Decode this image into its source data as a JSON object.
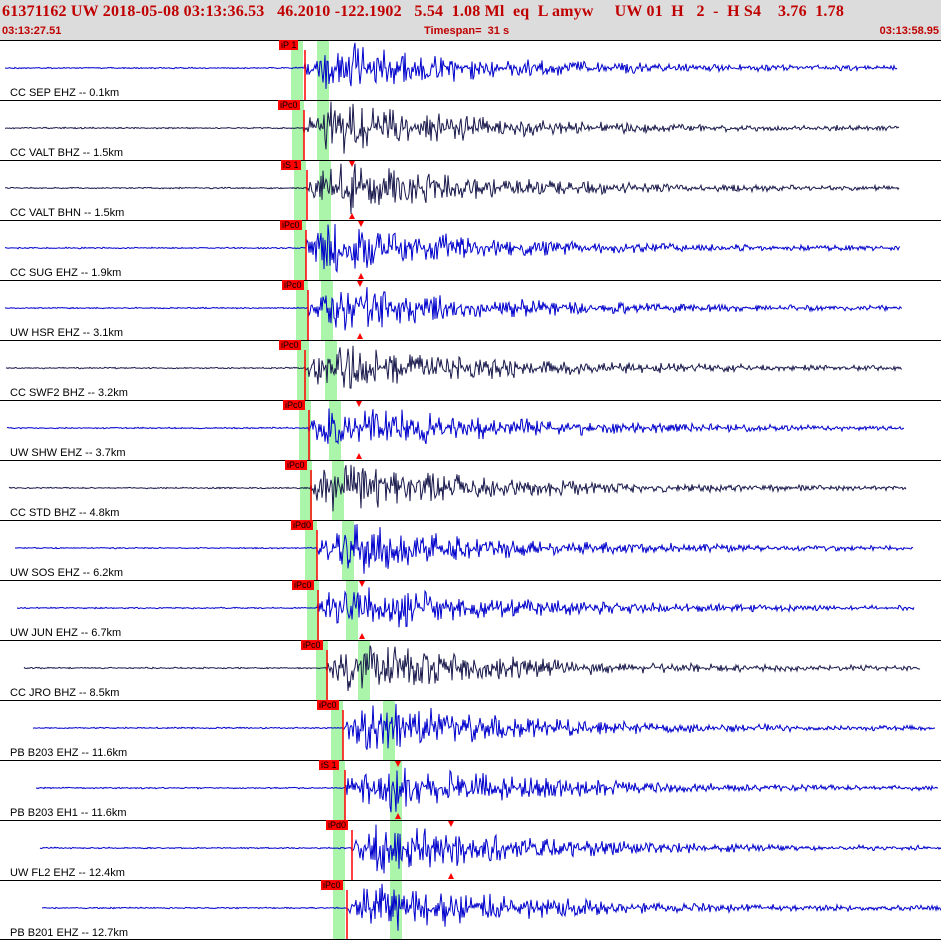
{
  "header": {
    "title": "61371162 UW 2018-05-08 03:13:36.53   46.2010 -122.1902   5.54  1.08 Ml  eq  L amyw     UW 01  H   2  -  H S4    3.76  1.78",
    "start_time": "03:13:27.51",
    "timespan": "Timespan=  31 s",
    "end_time": "03:13:58.95"
  },
  "colors": {
    "header_text": "#c00000",
    "pick_flag": "#ff0000",
    "window_band": "#aaf5aa",
    "blue_trace": "#0000cc",
    "dark_trace": "#1a1a4d"
  },
  "channels": [
    {
      "label": "CC SEP EHZ -- 0.1km",
      "color": "blue",
      "pick": "iP 1",
      "s_pick": false
    },
    {
      "label": "CC VALT BHZ -- 1.5km",
      "color": "dark",
      "pick": "iPc0",
      "s_pick": false
    },
    {
      "label": "CC VALT BHN -- 1.5km",
      "color": "dark",
      "pick": "iS 1",
      "s_pick": true
    },
    {
      "label": "CC SUG EHZ -- 1.9km",
      "color": "blue",
      "pick": "iPc0",
      "s_pick": true
    },
    {
      "label": "UW HSR EHZ -- 3.1km",
      "color": "blue",
      "pick": "iPc0",
      "s_pick": true
    },
    {
      "label": "CC SWF2 BHZ -- 3.2km",
      "color": "dark",
      "pick": "iPc0",
      "s_pick": false
    },
    {
      "label": "UW SHW EHZ -- 3.7km",
      "color": "blue",
      "pick": "iPc0",
      "s_pick": true
    },
    {
      "label": "CC STD BHZ -- 4.8km",
      "color": "dark",
      "pick": "iPc0",
      "s_pick": false
    },
    {
      "label": "UW SOS EHZ -- 6.2km",
      "color": "blue",
      "pick": "iPd0",
      "s_pick": false
    },
    {
      "label": "UW JUN EHZ -- 6.7km",
      "color": "blue",
      "pick": "iPc0",
      "s_pick": true
    },
    {
      "label": "CC JRO BHZ -- 8.5km",
      "color": "dark",
      "pick": "iPc0",
      "s_pick": false
    },
    {
      "label": "PB B203 EHZ -- 11.6km",
      "color": "blue",
      "pick": "iPc0",
      "s_pick": false
    },
    {
      "label": "PB B203 EH1 -- 11.6km",
      "color": "blue",
      "pick": "iS 1",
      "s_pick": true
    },
    {
      "label": "UW FL2 EHZ -- 12.4km",
      "color": "blue",
      "pick": "iPd0",
      "s_pick": true
    },
    {
      "label": "PB B201 EHZ -- 12.7km",
      "color": "blue",
      "pick": "iPc0",
      "s_pick": false
    }
  ]
}
